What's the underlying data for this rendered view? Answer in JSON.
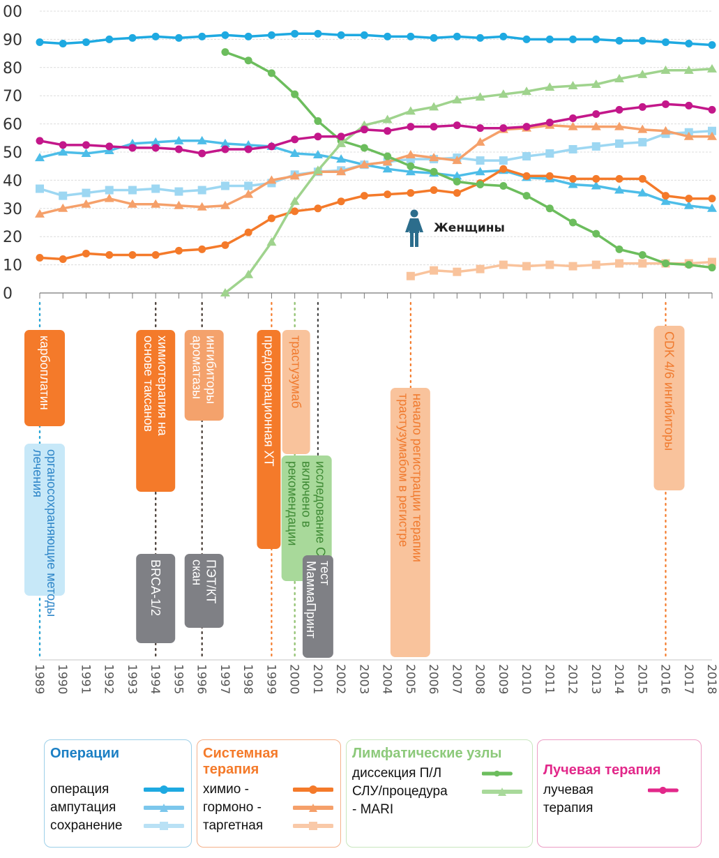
{
  "chart_data": {
    "type": "line",
    "title": "",
    "subtitle_label": "Женщины",
    "xlabel": "",
    "ylabel": "",
    "ylim": [
      0,
      100
    ],
    "yticks": [
      "0",
      "10",
      "20",
      "30",
      "40",
      "50",
      "60",
      "70",
      "80",
      "90",
      "00"
    ],
    "grid": true,
    "x": [
      1989,
      1990,
      1991,
      1992,
      1993,
      1994,
      1995,
      1996,
      1997,
      1998,
      1999,
      2000,
      2001,
      2002,
      2003,
      2004,
      2005,
      2006,
      2007,
      2008,
      2009,
      2010,
      2011,
      2012,
      2013,
      2014,
      2015,
      2016,
      2017,
      2018
    ],
    "xtick_labels": [
      "1989",
      "1990",
      "1991",
      "1992",
      "1993",
      "1994",
      "1995",
      "1996",
      "1997",
      "1998",
      "1999",
      "2000",
      "2001",
      "2002",
      "2003",
      "2004",
      "2005",
      "2006",
      "2007",
      "2008",
      "2009",
      "2010",
      "2011",
      "2012",
      "2013",
      "2014",
      "2015",
      "2016",
      "2017",
      "2018"
    ],
    "series": [
      {
        "name": "операция",
        "group": "Операции",
        "color": "#1ea9e1",
        "marker": "circle",
        "values": [
          89,
          88.5,
          89,
          90,
          90.5,
          91,
          90.5,
          91,
          91.5,
          91,
          91.5,
          92,
          92,
          91.5,
          91.5,
          91,
          91,
          90.5,
          91,
          90.5,
          91,
          90,
          90,
          90,
          90,
          89.5,
          89.5,
          89,
          88.5,
          88
        ]
      },
      {
        "name": "ампутация",
        "group": "Операции",
        "color": "#4dbde8",
        "marker": "triangle",
        "values": [
          48,
          50,
          49.5,
          50.5,
          53,
          53.5,
          54,
          54,
          53,
          52.5,
          52,
          49.5,
          49,
          47.5,
          45.5,
          44,
          43,
          42.5,
          41.5,
          43,
          43.5,
          41,
          40.5,
          38.5,
          38,
          36.5,
          35.5,
          32.5,
          31,
          30
        ]
      },
      {
        "name": "сохранение",
        "group": "Операции",
        "color": "#9dd7f2",
        "marker": "square",
        "values": [
          37,
          34.5,
          35.5,
          36.5,
          36.5,
          37,
          36,
          36.5,
          38,
          38,
          39,
          42,
          43,
          43.5,
          45.5,
          46.5,
          47.5,
          47.5,
          48,
          47,
          47,
          48.5,
          49.5,
          51,
          52,
          53,
          53.5,
          56.5,
          57,
          57.5
        ]
      },
      {
        "name": "химио",
        "group": "Системная терапия",
        "color": "#f47a2a",
        "marker": "circle",
        "values": [
          12.5,
          12,
          14,
          13.5,
          13.5,
          13.5,
          15,
          15.5,
          17,
          21.5,
          26.5,
          29,
          30,
          32.5,
          34.5,
          35,
          35.5,
          36.5,
          35.5,
          39,
          44,
          41.5,
          41.5,
          40.5,
          40.5,
          40.5,
          40.5,
          34.5,
          33.5,
          33.5
        ]
      },
      {
        "name": "гормоно",
        "group": "Системная терапия",
        "color": "#f5a06a",
        "marker": "triangle",
        "values": [
          28,
          30,
          31.5,
          33.5,
          31.5,
          31.5,
          31,
          30.5,
          31,
          35,
          40,
          41.5,
          43,
          43,
          45.5,
          46.5,
          49,
          48,
          47,
          53.5,
          58,
          58.5,
          59.5,
          59,
          59,
          59,
          58,
          57.5,
          55.5,
          55.5
        ]
      },
      {
        "name": "таргетная",
        "group": "Системная терапия",
        "color": "#f9c39c",
        "marker": "square",
        "values": [
          null,
          null,
          null,
          null,
          null,
          null,
          null,
          null,
          null,
          null,
          null,
          null,
          null,
          null,
          null,
          null,
          6,
          8,
          7.5,
          8.5,
          10,
          9.5,
          10,
          9.5,
          10,
          10.5,
          10.5,
          10.5,
          10.5,
          11
        ]
      },
      {
        "name": "диссекция П/Л",
        "group": "Лимфатические узлы",
        "color": "#6cbd5d",
        "marker": "circle",
        "values": [
          null,
          null,
          null,
          null,
          null,
          null,
          null,
          null,
          85.5,
          82.5,
          78,
          70.5,
          61,
          54,
          51.5,
          48.5,
          45,
          43,
          39.5,
          38.5,
          38,
          34.5,
          30,
          25,
          21,
          15.5,
          13.5,
          10.5,
          10,
          9
        ]
      },
      {
        "name": "СЛУ/процедура - MARI",
        "group": "Лимфатические узлы",
        "color": "#9fd38d",
        "marker": "triangle",
        "values": [
          null,
          null,
          null,
          null,
          null,
          null,
          null,
          null,
          0,
          6.5,
          18,
          32.5,
          43.5,
          53,
          59.5,
          61.5,
          64.5,
          66,
          68.5,
          69.5,
          70.5,
          71.5,
          73,
          73.5,
          74,
          76,
          77.5,
          79,
          79,
          79.5
        ]
      },
      {
        "name": "лучевая терапия",
        "group": "Лучевая терапия",
        "color": "#c3178a",
        "marker": "circle",
        "values": [
          54,
          52.5,
          52.5,
          52,
          51.5,
          51.5,
          51,
          49.5,
          51,
          51,
          52,
          54.5,
          55.5,
          55.5,
          58,
          57.5,
          59,
          59,
          59.5,
          58.5,
          58.5,
          59,
          60.5,
          62,
          63.5,
          65,
          66,
          67,
          66.5,
          65
        ]
      }
    ],
    "events": [
      {
        "year": 1989,
        "label": "карбоплатин",
        "kind": "systemic"
      },
      {
        "year": 1989,
        "label": "органосохраняющие методы лечения",
        "kind": "surgery"
      },
      {
        "year": 1994,
        "label": "химиотерапия на основе таксанов",
        "kind": "systemic"
      },
      {
        "year": 1994,
        "label": "BRCA-1/2",
        "kind": "diagnostic"
      },
      {
        "year": 1996,
        "label": "ингибиторы ароматазы",
        "kind": "hormone"
      },
      {
        "year": 1996,
        "label": "ПЭТ/КТ скан",
        "kind": "diagnostic"
      },
      {
        "year": 1999,
        "label": "предоперационная ХТ",
        "kind": "systemic"
      },
      {
        "year": 2000,
        "label": "трастузумаб",
        "kind": "targeted"
      },
      {
        "year": 2000,
        "label": "исследование СЛУ включено в рекомендации",
        "kind": "lymph"
      },
      {
        "year": 2001,
        "label": "тест МаммаПринт",
        "kind": "diagnostic"
      },
      {
        "year": 2005,
        "label": "начало регистрации терапии трастузумабом в регистре",
        "kind": "targeted"
      },
      {
        "year": 2016,
        "label": "CDK 4/6 ингибиторы",
        "kind": "targeted"
      }
    ]
  },
  "legend": {
    "groups": [
      {
        "title": "Операции",
        "color": "#1b7fc4",
        "items": [
          "операция",
          "ампутация",
          "сохранение"
        ]
      },
      {
        "title": "Системная терапия",
        "color": "#f47a2a",
        "items": [
          "химио -",
          "гормоно -",
          "таргетная"
        ]
      },
      {
        "title": "Лимфатические узлы",
        "color": "#8cc97a",
        "items": [
          "диссекция П/Л",
          "СЛУ/процедура",
          "- MARI"
        ]
      },
      {
        "title": "Лучевая терапия",
        "color": "#e2288a",
        "items": [
          "лучевая",
          "терапия"
        ]
      }
    ]
  },
  "colors": {
    "systemic": "#f47a2a",
    "hormone": "#f4a26c",
    "targeted": "#f9c39c",
    "lymph": "#a8d99a",
    "surgery": "#c7e8f8",
    "diagnostic": "#7f8085"
  }
}
